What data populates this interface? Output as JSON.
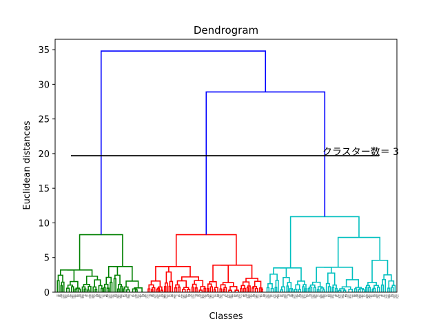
{
  "chart_data": {
    "type": "dendrogram",
    "title": "Dendrogram",
    "xlabel": "Classes",
    "ylabel": "Euclidean distances",
    "ylim": [
      0,
      36.5
    ],
    "yticks": [
      0,
      5,
      10,
      15,
      20,
      25,
      30,
      35
    ],
    "grid": false,
    "leaf_count": 200,
    "colors": {
      "cluster1": "#008000",
      "cluster2": "#ff0000",
      "cluster3": "#00bfbf",
      "above": "#0000ff",
      "cut_line": "#000000"
    },
    "merges": [
      {
        "name": "root",
        "height": 34.8,
        "color": "above"
      },
      {
        "name": "cluster2-cluster3",
        "height": 28.9,
        "color": "above"
      },
      {
        "name": "cluster1-top",
        "height": 8.3,
        "color": "cluster1"
      },
      {
        "name": "cluster2-top",
        "height": 8.3,
        "color": "cluster2"
      },
      {
        "name": "cluster3-top",
        "height": 10.9,
        "color": "cluster3"
      },
      {
        "name": "cluster3-right",
        "height": 7.9,
        "color": "cluster3"
      },
      {
        "name": "cluster3-right-sub",
        "height": 4.6,
        "color": "cluster3"
      }
    ],
    "cut_line": {
      "y": 19.7
    },
    "annotation": "クラスター数＝ 3"
  }
}
